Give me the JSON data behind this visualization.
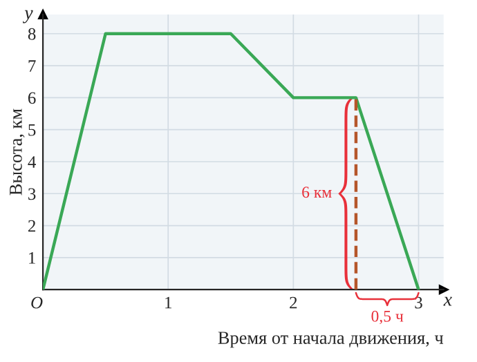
{
  "chart_data": {
    "type": "line",
    "xlabel": "Время от начала движения, ч",
    "ylabel": "Высота, км",
    "x": [
      0,
      0.5,
      1.5,
      2,
      2.5,
      3
    ],
    "series": [
      {
        "color": "#3aa856",
        "values": [
          0,
          8,
          8,
          6,
          6,
          0
        ],
        "line_style": "solid"
      },
      {
        "color": "#b5562a",
        "x": [
          2.5,
          2.5
        ],
        "values": [
          0,
          6
        ],
        "line_style": "dashed"
      }
    ],
    "xlim": [
      0,
      3.2
    ],
    "ylim": [
      0,
      8.6
    ],
    "xticks": [
      {
        "value": 0,
        "label": "O"
      },
      1,
      2,
      3
    ],
    "yticks": [
      1,
      2,
      3,
      4,
      5,
      6,
      7,
      8
    ],
    "grid": true,
    "legend": false,
    "marker": "none",
    "annotations": [
      {
        "text": "6 км",
        "x": 2.5,
        "y": 3
      },
      "0,5 ч",
      "x",
      "y"
    ]
  }
}
